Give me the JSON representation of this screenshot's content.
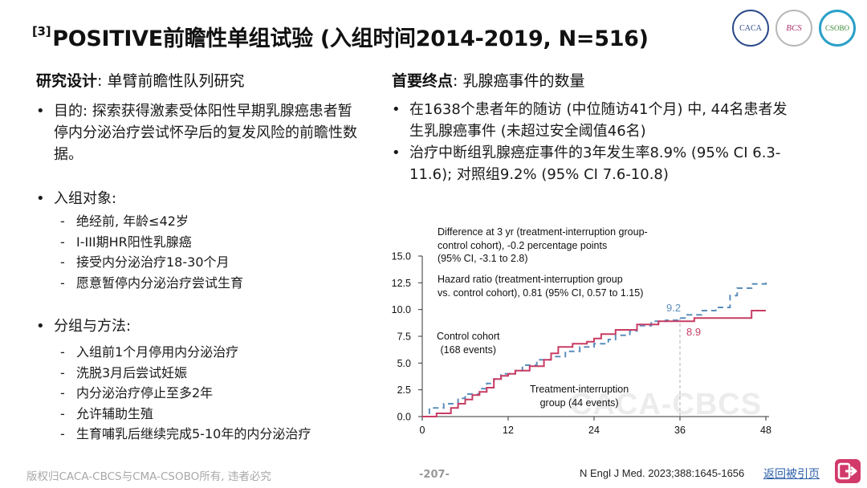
{
  "header": {
    "title_sup": "[3]",
    "title": "POSITIVE前瞻性单组试验 (入组时间2014-2019, N=516)",
    "logos": [
      {
        "icon": "society-seal-logo",
        "text": "CACA"
      },
      {
        "icon": "bcs-logo",
        "text": "BCS"
      },
      {
        "icon": "csobo-logo",
        "text": "CSOBO"
      }
    ]
  },
  "left": {
    "study_design_label": "研究设计",
    "study_design_value": ": 单臂前瞻性队列研究",
    "objective": "目的: 探索获得激素受体阳性早期乳腺癌患者暂停内分泌治疗尝试怀孕后的复发风险的前瞻性数据。",
    "population_label": "入组对象:",
    "population_items": [
      "绝经前, 年龄≤42岁",
      "I-III期HR阳性乳腺癌",
      "接受内分泌治疗18-30个月",
      "愿意暂停内分泌治疗尝试生育"
    ],
    "methods_label": "分组与方法:",
    "methods_items": [
      "入组前1个月停用内分泌治疗",
      "洗脱3月后尝试妊娠",
      "内分泌治疗停止至多2年",
      "允许辅助生殖",
      "生育哺乳后继续完成5-10年的内分泌治疗"
    ]
  },
  "right": {
    "endpoint_label": "首要终点",
    "endpoint_value": ": 乳腺癌事件的数量",
    "bullets": [
      "在1638个患者年的随访 (中位随访41个月) 中, 44名患者发生乳腺癌事件 (未超过安全阈值46名)",
      "治疗中断组乳腺癌症事件的3年发生率8.9% (95% CI 6.3-11.6); 对照组9.2% (95% CI 7.6-10.8)"
    ]
  },
  "chart_data": {
    "type": "line",
    "subtype": "step",
    "xlim": [
      0,
      48
    ],
    "ylim": [
      0,
      15
    ],
    "x_ticks": [
      "0",
      "12",
      "24",
      "36",
      "48"
    ],
    "y_ticks": [
      "0.0",
      "2.5",
      "5.0",
      "7.5",
      "10.0",
      "12.5",
      "15.0"
    ],
    "reference_x": 36,
    "annotations": {
      "difference_line1": "Difference at 3 yr (treatment-interruption group-",
      "difference_line2": "control cohort), -0.2 percentage points",
      "difference_line3": "(95% CI, -3.1 to 2.8)",
      "hazard_line1": "Hazard ratio (treatment-interruption group",
      "hazard_line2": "vs. control cohort), 0.81 (95% CI, 0.57 to 1.15)",
      "control_line1": "Control cohort",
      "control_line2": "(168 events)",
      "treatment_line1": "Treatment-interruption",
      "treatment_line2": "group (44 events)",
      "control_value_label": "9.2",
      "treatment_value_label": "8.9"
    },
    "series": [
      {
        "key": "control",
        "color": "#5b8ebc",
        "dashed": true,
        "points": [
          [
            0,
            0
          ],
          [
            1,
            0
          ],
          [
            1,
            0.8
          ],
          [
            3,
            0.8
          ],
          [
            3,
            1.2
          ],
          [
            5,
            1.2
          ],
          [
            5,
            1.7
          ],
          [
            6,
            1.7
          ],
          [
            6,
            2.1
          ],
          [
            8,
            2.1
          ],
          [
            8,
            2.6
          ],
          [
            9,
            2.6
          ],
          [
            9,
            3.1
          ],
          [
            10,
            3.1
          ],
          [
            10,
            3.5
          ],
          [
            11,
            3.5
          ],
          [
            11,
            4
          ],
          [
            13,
            4
          ],
          [
            13,
            4.3
          ],
          [
            14,
            4.3
          ],
          [
            14,
            4.8
          ],
          [
            16,
            4.8
          ],
          [
            16,
            5.3
          ],
          [
            18,
            5.3
          ],
          [
            18,
            5.6
          ],
          [
            20,
            5.6
          ],
          [
            20,
            6.1
          ],
          [
            22,
            6.1
          ],
          [
            22,
            6.5
          ],
          [
            24,
            6.5
          ],
          [
            24,
            6.8
          ],
          [
            26,
            6.8
          ],
          [
            26,
            7.2
          ],
          [
            27,
            7.2
          ],
          [
            27,
            7.6
          ],
          [
            29,
            7.6
          ],
          [
            29,
            8
          ],
          [
            30,
            8
          ],
          [
            30,
            8.5
          ],
          [
            32,
            8.5
          ],
          [
            32,
            8.9
          ],
          [
            34,
            8.9
          ],
          [
            34,
            9
          ],
          [
            36,
            9
          ],
          [
            36,
            9.2
          ],
          [
            37,
            9.2
          ],
          [
            37,
            9.5
          ],
          [
            39,
            9.5
          ],
          [
            39,
            9.9
          ],
          [
            41,
            9.9
          ],
          [
            41,
            10.2
          ],
          [
            43,
            10.2
          ],
          [
            43,
            11.3
          ],
          [
            44,
            11.3
          ],
          [
            44,
            12
          ],
          [
            46,
            12
          ],
          [
            46,
            12.4
          ],
          [
            48,
            12.4
          ],
          [
            48,
            12.8
          ]
        ]
      },
      {
        "key": "treatment",
        "color": "#c83c64",
        "dashed": false,
        "points": [
          [
            0,
            0
          ],
          [
            2,
            0
          ],
          [
            2,
            0.3
          ],
          [
            4,
            0.3
          ],
          [
            4,
            0.8
          ],
          [
            5,
            0.8
          ],
          [
            5,
            1.2
          ],
          [
            6,
            1.2
          ],
          [
            6,
            1.6
          ],
          [
            7,
            1.6
          ],
          [
            7,
            2
          ],
          [
            8,
            2
          ],
          [
            8,
            2.3
          ],
          [
            9,
            2.3
          ],
          [
            9,
            2.7
          ],
          [
            10,
            2.7
          ],
          [
            10,
            3.5
          ],
          [
            11,
            3.5
          ],
          [
            11,
            3.8
          ],
          [
            12,
            3.8
          ],
          [
            12,
            4
          ],
          [
            13,
            4
          ],
          [
            13,
            4.3
          ],
          [
            15,
            4.3
          ],
          [
            15,
            4.7
          ],
          [
            17,
            4.7
          ],
          [
            17,
            5.3
          ],
          [
            18,
            5.3
          ],
          [
            18,
            5.9
          ],
          [
            19,
            5.9
          ],
          [
            19,
            6.5
          ],
          [
            21,
            6.5
          ],
          [
            21,
            6.8
          ],
          [
            23,
            6.8
          ],
          [
            23,
            7
          ],
          [
            24,
            7
          ],
          [
            24,
            7.3
          ],
          [
            25,
            7.3
          ],
          [
            25,
            7.7
          ],
          [
            27,
            7.7
          ],
          [
            27,
            8.1
          ],
          [
            30,
            8.1
          ],
          [
            30,
            8.6
          ],
          [
            33,
            8.6
          ],
          [
            33,
            8.9
          ],
          [
            36,
            8.9
          ],
          [
            36,
            8.9
          ],
          [
            38,
            8.9
          ],
          [
            38,
            9.2
          ],
          [
            46,
            9.2
          ],
          [
            46,
            9.9
          ],
          [
            48,
            9.9
          ]
        ]
      }
    ]
  },
  "footer": {
    "copyright": "版权归CACA-CBCS与CMA-CSOBO所有, 违者必究",
    "page": "-207-",
    "reference": "N Engl J Med. 2023;388:1645-1656",
    "back_link": "返回被引页",
    "back_icon": "return-arrow-icon"
  },
  "watermark": "CACA-CBCS"
}
